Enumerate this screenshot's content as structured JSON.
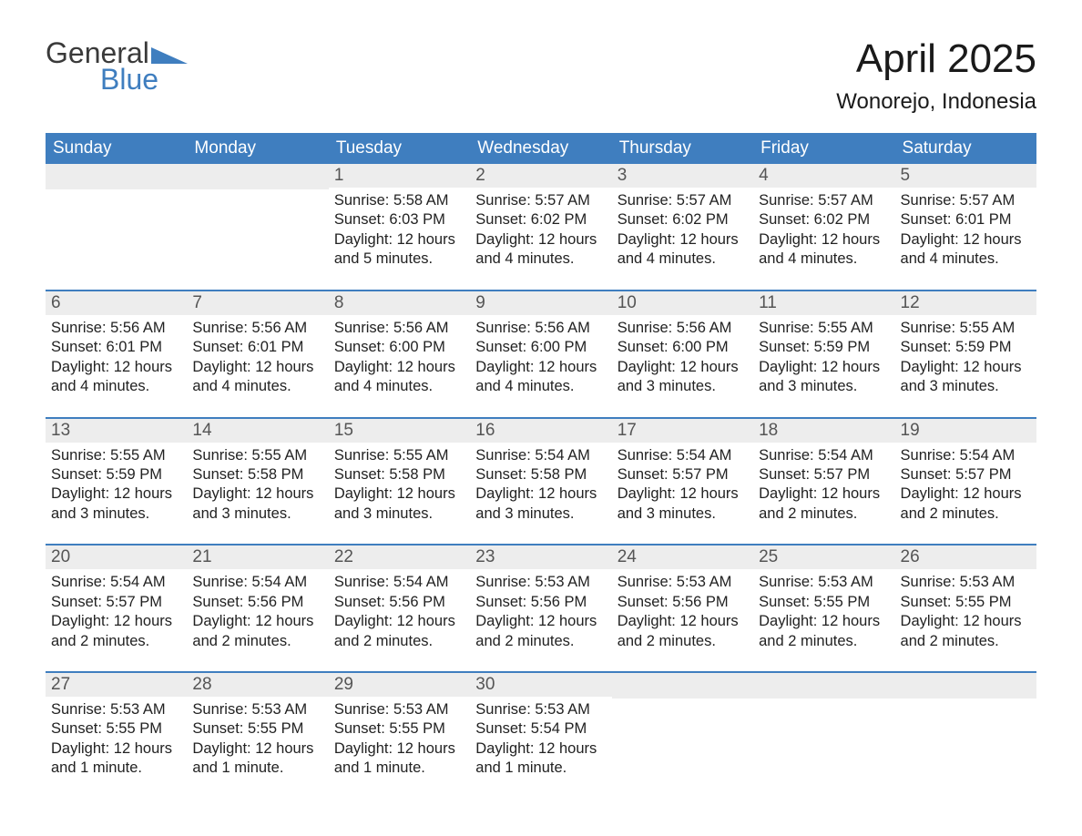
{
  "brand": {
    "word1": "General",
    "word2": "Blue"
  },
  "title": "April 2025",
  "location": "Wonorejo, Indonesia",
  "colors": {
    "header_bg": "#3f7ebf",
    "header_text": "#ffffff",
    "daynum_bg": "#ededed",
    "daynum_text": "#555555",
    "body_text": "#222222",
    "logo_blue": "#3f7ebf",
    "logo_gray": "#3a3a3a",
    "week_divider": "#3f7ebf"
  },
  "typography": {
    "title_fontsize": 44,
    "location_fontsize": 24,
    "dow_fontsize": 19,
    "daynum_fontsize": 19,
    "body_fontsize": 16.5,
    "font_family": "Arial"
  },
  "days_of_week": [
    "Sunday",
    "Monday",
    "Tuesday",
    "Wednesday",
    "Thursday",
    "Friday",
    "Saturday"
  ],
  "weeks": [
    [
      {
        "num": "",
        "sunrise": "",
        "sunset": "",
        "daylight": ""
      },
      {
        "num": "",
        "sunrise": "",
        "sunset": "",
        "daylight": ""
      },
      {
        "num": "1",
        "sunrise": "Sunrise: 5:58 AM",
        "sunset": "Sunset: 6:03 PM",
        "daylight": "Daylight: 12 hours and 5 minutes."
      },
      {
        "num": "2",
        "sunrise": "Sunrise: 5:57 AM",
        "sunset": "Sunset: 6:02 PM",
        "daylight": "Daylight: 12 hours and 4 minutes."
      },
      {
        "num": "3",
        "sunrise": "Sunrise: 5:57 AM",
        "sunset": "Sunset: 6:02 PM",
        "daylight": "Daylight: 12 hours and 4 minutes."
      },
      {
        "num": "4",
        "sunrise": "Sunrise: 5:57 AM",
        "sunset": "Sunset: 6:02 PM",
        "daylight": "Daylight: 12 hours and 4 minutes."
      },
      {
        "num": "5",
        "sunrise": "Sunrise: 5:57 AM",
        "sunset": "Sunset: 6:01 PM",
        "daylight": "Daylight: 12 hours and 4 minutes."
      }
    ],
    [
      {
        "num": "6",
        "sunrise": "Sunrise: 5:56 AM",
        "sunset": "Sunset: 6:01 PM",
        "daylight": "Daylight: 12 hours and 4 minutes."
      },
      {
        "num": "7",
        "sunrise": "Sunrise: 5:56 AM",
        "sunset": "Sunset: 6:01 PM",
        "daylight": "Daylight: 12 hours and 4 minutes."
      },
      {
        "num": "8",
        "sunrise": "Sunrise: 5:56 AM",
        "sunset": "Sunset: 6:00 PM",
        "daylight": "Daylight: 12 hours and 4 minutes."
      },
      {
        "num": "9",
        "sunrise": "Sunrise: 5:56 AM",
        "sunset": "Sunset: 6:00 PM",
        "daylight": "Daylight: 12 hours and 4 minutes."
      },
      {
        "num": "10",
        "sunrise": "Sunrise: 5:56 AM",
        "sunset": "Sunset: 6:00 PM",
        "daylight": "Daylight: 12 hours and 3 minutes."
      },
      {
        "num": "11",
        "sunrise": "Sunrise: 5:55 AM",
        "sunset": "Sunset: 5:59 PM",
        "daylight": "Daylight: 12 hours and 3 minutes."
      },
      {
        "num": "12",
        "sunrise": "Sunrise: 5:55 AM",
        "sunset": "Sunset: 5:59 PM",
        "daylight": "Daylight: 12 hours and 3 minutes."
      }
    ],
    [
      {
        "num": "13",
        "sunrise": "Sunrise: 5:55 AM",
        "sunset": "Sunset: 5:59 PM",
        "daylight": "Daylight: 12 hours and 3 minutes."
      },
      {
        "num": "14",
        "sunrise": "Sunrise: 5:55 AM",
        "sunset": "Sunset: 5:58 PM",
        "daylight": "Daylight: 12 hours and 3 minutes."
      },
      {
        "num": "15",
        "sunrise": "Sunrise: 5:55 AM",
        "sunset": "Sunset: 5:58 PM",
        "daylight": "Daylight: 12 hours and 3 minutes."
      },
      {
        "num": "16",
        "sunrise": "Sunrise: 5:54 AM",
        "sunset": "Sunset: 5:58 PM",
        "daylight": "Daylight: 12 hours and 3 minutes."
      },
      {
        "num": "17",
        "sunrise": "Sunrise: 5:54 AM",
        "sunset": "Sunset: 5:57 PM",
        "daylight": "Daylight: 12 hours and 3 minutes."
      },
      {
        "num": "18",
        "sunrise": "Sunrise: 5:54 AM",
        "sunset": "Sunset: 5:57 PM",
        "daylight": "Daylight: 12 hours and 2 minutes."
      },
      {
        "num": "19",
        "sunrise": "Sunrise: 5:54 AM",
        "sunset": "Sunset: 5:57 PM",
        "daylight": "Daylight: 12 hours and 2 minutes."
      }
    ],
    [
      {
        "num": "20",
        "sunrise": "Sunrise: 5:54 AM",
        "sunset": "Sunset: 5:57 PM",
        "daylight": "Daylight: 12 hours and 2 minutes."
      },
      {
        "num": "21",
        "sunrise": "Sunrise: 5:54 AM",
        "sunset": "Sunset: 5:56 PM",
        "daylight": "Daylight: 12 hours and 2 minutes."
      },
      {
        "num": "22",
        "sunrise": "Sunrise: 5:54 AM",
        "sunset": "Sunset: 5:56 PM",
        "daylight": "Daylight: 12 hours and 2 minutes."
      },
      {
        "num": "23",
        "sunrise": "Sunrise: 5:53 AM",
        "sunset": "Sunset: 5:56 PM",
        "daylight": "Daylight: 12 hours and 2 minutes."
      },
      {
        "num": "24",
        "sunrise": "Sunrise: 5:53 AM",
        "sunset": "Sunset: 5:56 PM",
        "daylight": "Daylight: 12 hours and 2 minutes."
      },
      {
        "num": "25",
        "sunrise": "Sunrise: 5:53 AM",
        "sunset": "Sunset: 5:55 PM",
        "daylight": "Daylight: 12 hours and 2 minutes."
      },
      {
        "num": "26",
        "sunrise": "Sunrise: 5:53 AM",
        "sunset": "Sunset: 5:55 PM",
        "daylight": "Daylight: 12 hours and 2 minutes."
      }
    ],
    [
      {
        "num": "27",
        "sunrise": "Sunrise: 5:53 AM",
        "sunset": "Sunset: 5:55 PM",
        "daylight": "Daylight: 12 hours and 1 minute."
      },
      {
        "num": "28",
        "sunrise": "Sunrise: 5:53 AM",
        "sunset": "Sunset: 5:55 PM",
        "daylight": "Daylight: 12 hours and 1 minute."
      },
      {
        "num": "29",
        "sunrise": "Sunrise: 5:53 AM",
        "sunset": "Sunset: 5:55 PM",
        "daylight": "Daylight: 12 hours and 1 minute."
      },
      {
        "num": "30",
        "sunrise": "Sunrise: 5:53 AM",
        "sunset": "Sunset: 5:54 PM",
        "daylight": "Daylight: 12 hours and 1 minute."
      },
      {
        "num": "",
        "sunrise": "",
        "sunset": "",
        "daylight": ""
      },
      {
        "num": "",
        "sunrise": "",
        "sunset": "",
        "daylight": ""
      },
      {
        "num": "",
        "sunrise": "",
        "sunset": "",
        "daylight": ""
      }
    ]
  ]
}
